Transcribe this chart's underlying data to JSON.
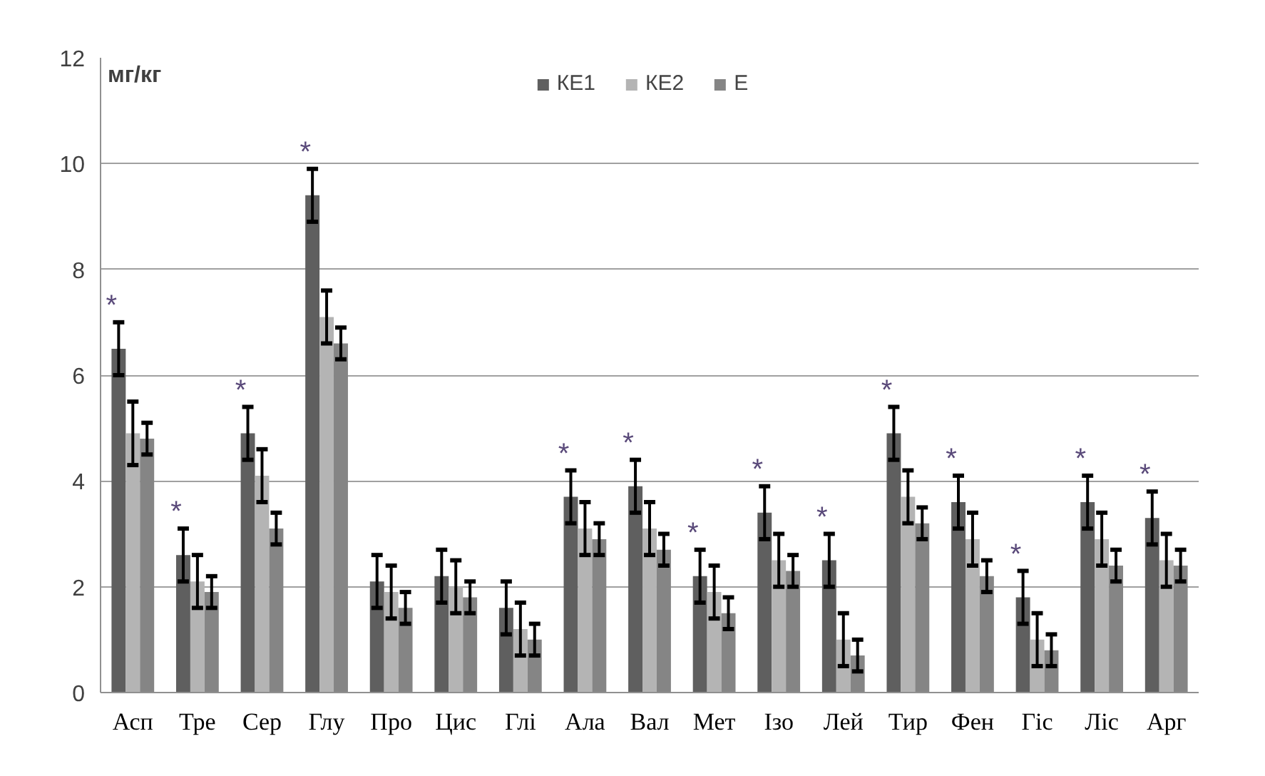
{
  "chart_data": {
    "type": "bar",
    "ylabel": "мг/кг",
    "categories": [
      "Асп",
      "Тре",
      "Сер",
      "Глу",
      "Про",
      "Цис",
      "Глі",
      "Ала",
      "Вал",
      "Мет",
      "Ізо",
      "Лей",
      "Тир",
      "Фен",
      "Гіс",
      "Ліс",
      "Арг"
    ],
    "series": [
      {
        "name": "КЕ1",
        "color": "#5f5f5f",
        "values": [
          6.5,
          2.6,
          4.9,
          9.4,
          2.1,
          2.2,
          1.6,
          3.7,
          3.9,
          2.2,
          3.4,
          2.5,
          4.9,
          3.6,
          1.8,
          3.6,
          3.3
        ],
        "errors": [
          0.5,
          0.5,
          0.5,
          0.5,
          0.5,
          0.5,
          0.5,
          0.5,
          0.5,
          0.5,
          0.5,
          0.5,
          0.5,
          0.5,
          0.5,
          0.5,
          0.5
        ]
      },
      {
        "name": "КЕ2",
        "color": "#b4b4b4",
        "values": [
          4.9,
          2.1,
          4.1,
          7.1,
          1.9,
          2.0,
          1.2,
          3.1,
          3.1,
          1.9,
          2.5,
          1.0,
          3.7,
          2.9,
          1.0,
          2.9,
          2.5
        ],
        "errors": [
          0.6,
          0.5,
          0.5,
          0.5,
          0.5,
          0.5,
          0.5,
          0.5,
          0.5,
          0.5,
          0.5,
          0.5,
          0.5,
          0.5,
          0.5,
          0.5,
          0.5
        ]
      },
      {
        "name": "Е",
        "color": "#858585",
        "values": [
          4.8,
          1.9,
          3.1,
          6.6,
          1.6,
          1.8,
          1.0,
          2.9,
          2.7,
          1.5,
          2.3,
          0.7,
          3.2,
          2.2,
          0.8,
          2.4,
          2.4
        ],
        "errors": [
          0.3,
          0.3,
          0.3,
          0.3,
          0.3,
          0.3,
          0.3,
          0.3,
          0.3,
          0.3,
          0.3,
          0.3,
          0.3,
          0.3,
          0.3,
          0.3,
          0.3
        ]
      }
    ],
    "ylim": [
      0,
      12
    ],
    "yticks": [
      0,
      2,
      4,
      6,
      8,
      10,
      12
    ],
    "grid": "y",
    "legend": "top",
    "annotations": [
      {
        "text": "*",
        "x": "Асп",
        "y": 6.5
      },
      {
        "text": "*",
        "x": "Тре",
        "y": 2.6
      },
      {
        "text": "*",
        "x": "Сер",
        "y": 4.9
      },
      {
        "text": "*",
        "x": "Глу",
        "y": 9.4
      },
      {
        "text": "*",
        "x": "Ала",
        "y": 3.7
      },
      {
        "text": "*",
        "x": "Вал",
        "y": 3.9
      },
      {
        "text": "*",
        "x": "Мет",
        "y": 2.2
      },
      {
        "text": "*",
        "x": "Ізо",
        "y": 3.4
      },
      {
        "text": "*",
        "x": "Лей",
        "y": 2.5
      },
      {
        "text": "*",
        "x": "Тир",
        "y": 4.9
      },
      {
        "text": "*",
        "x": "Фен",
        "y": 3.6
      },
      {
        "text": "*",
        "x": "Гіс",
        "y": 1.8
      },
      {
        "text": "*",
        "x": "Ліс",
        "y": 3.6
      },
      {
        "text": "*",
        "x": "Арг",
        "y": 3.3
      }
    ]
  }
}
